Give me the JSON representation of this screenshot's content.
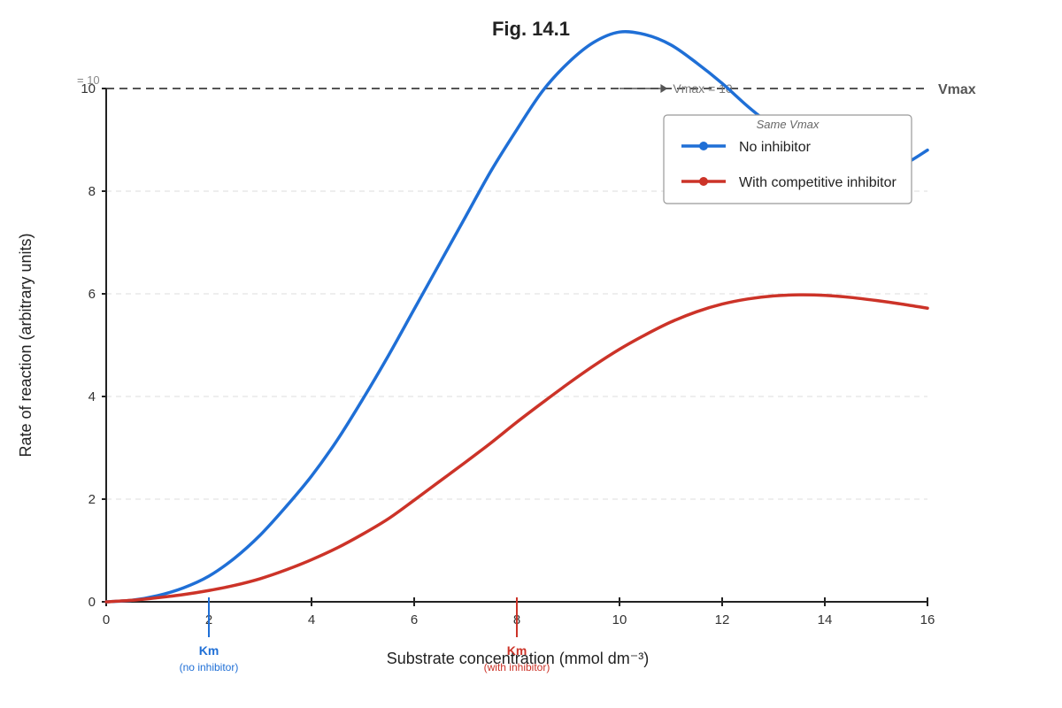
{
  "chart_data": {
    "type": "line",
    "title": "Fig. 14.1",
    "xlabel": "Substrate concentration (mmol dm⁻³)",
    "ylabel": "Rate of reaction (arbitrary units)",
    "xlim": [
      0,
      16
    ],
    "ylim": [
      0,
      10
    ],
    "x_ticks": [
      0,
      2,
      4,
      6,
      8,
      10,
      12,
      14,
      16
    ],
    "y_ticks": [
      0,
      2,
      4,
      6,
      8,
      10
    ],
    "grid": "horizontal dashed",
    "legend": {
      "placement": "top-right",
      "title": "Same Vmax"
    },
    "series": [
      {
        "name": "No inhibitor",
        "color": "#1f6fd6",
        "x": [
          0,
          0.5,
          1,
          1.5,
          2,
          2.5,
          3,
          3.5,
          4,
          4.5,
          5,
          5.5,
          6,
          6.5,
          7,
          7.5,
          8,
          8.5,
          9,
          9.5,
          10,
          10.5,
          11,
          11.5,
          12,
          12.5,
          13,
          13.5,
          14,
          14.5,
          15,
          15.5,
          16
        ],
        "values": [
          0,
          0.03,
          0.12,
          0.27,
          0.5,
          0.85,
          1.3,
          1.85,
          2.45,
          3.15,
          3.95,
          4.8,
          5.7,
          6.6,
          7.5,
          8.4,
          9.2,
          9.95,
          10.5,
          10.9,
          11.1,
          11.05,
          10.85,
          10.5,
          10.1,
          9.65,
          9.25,
          8.9,
          8.6,
          8.4,
          8.35,
          8.5,
          8.8
        ]
      },
      {
        "name": "With competitive inhibitor",
        "color": "#cc3328",
        "x": [
          0,
          0.5,
          1,
          1.5,
          2,
          2.5,
          3,
          3.5,
          4,
          4.5,
          5,
          5.5,
          6,
          6.5,
          7,
          7.5,
          8,
          8.5,
          9,
          9.5,
          10,
          10.5,
          11,
          11.5,
          12,
          12.5,
          13,
          13.5,
          14,
          14.5,
          15,
          15.5,
          16
        ],
        "values": [
          0,
          0.03,
          0.08,
          0.14,
          0.22,
          0.32,
          0.45,
          0.62,
          0.82,
          1.05,
          1.32,
          1.62,
          1.98,
          2.35,
          2.72,
          3.1,
          3.5,
          3.88,
          4.25,
          4.6,
          4.92,
          5.2,
          5.45,
          5.65,
          5.8,
          5.9,
          5.96,
          5.98,
          5.97,
          5.93,
          5.87,
          5.8,
          5.72
        ]
      }
    ],
    "reference_line": {
      "y": 10,
      "right_label": "Vmax",
      "left_label": "= 10",
      "arrow_label": "Vmax = 10"
    },
    "km_markers": [
      {
        "x": 2,
        "label": "Km",
        "sublabel": "(no inhibitor)",
        "color": "#1f6fd6"
      },
      {
        "x": 8,
        "label": "Km",
        "sublabel": "(with inhibitor)",
        "color": "#cc3328"
      }
    ]
  }
}
